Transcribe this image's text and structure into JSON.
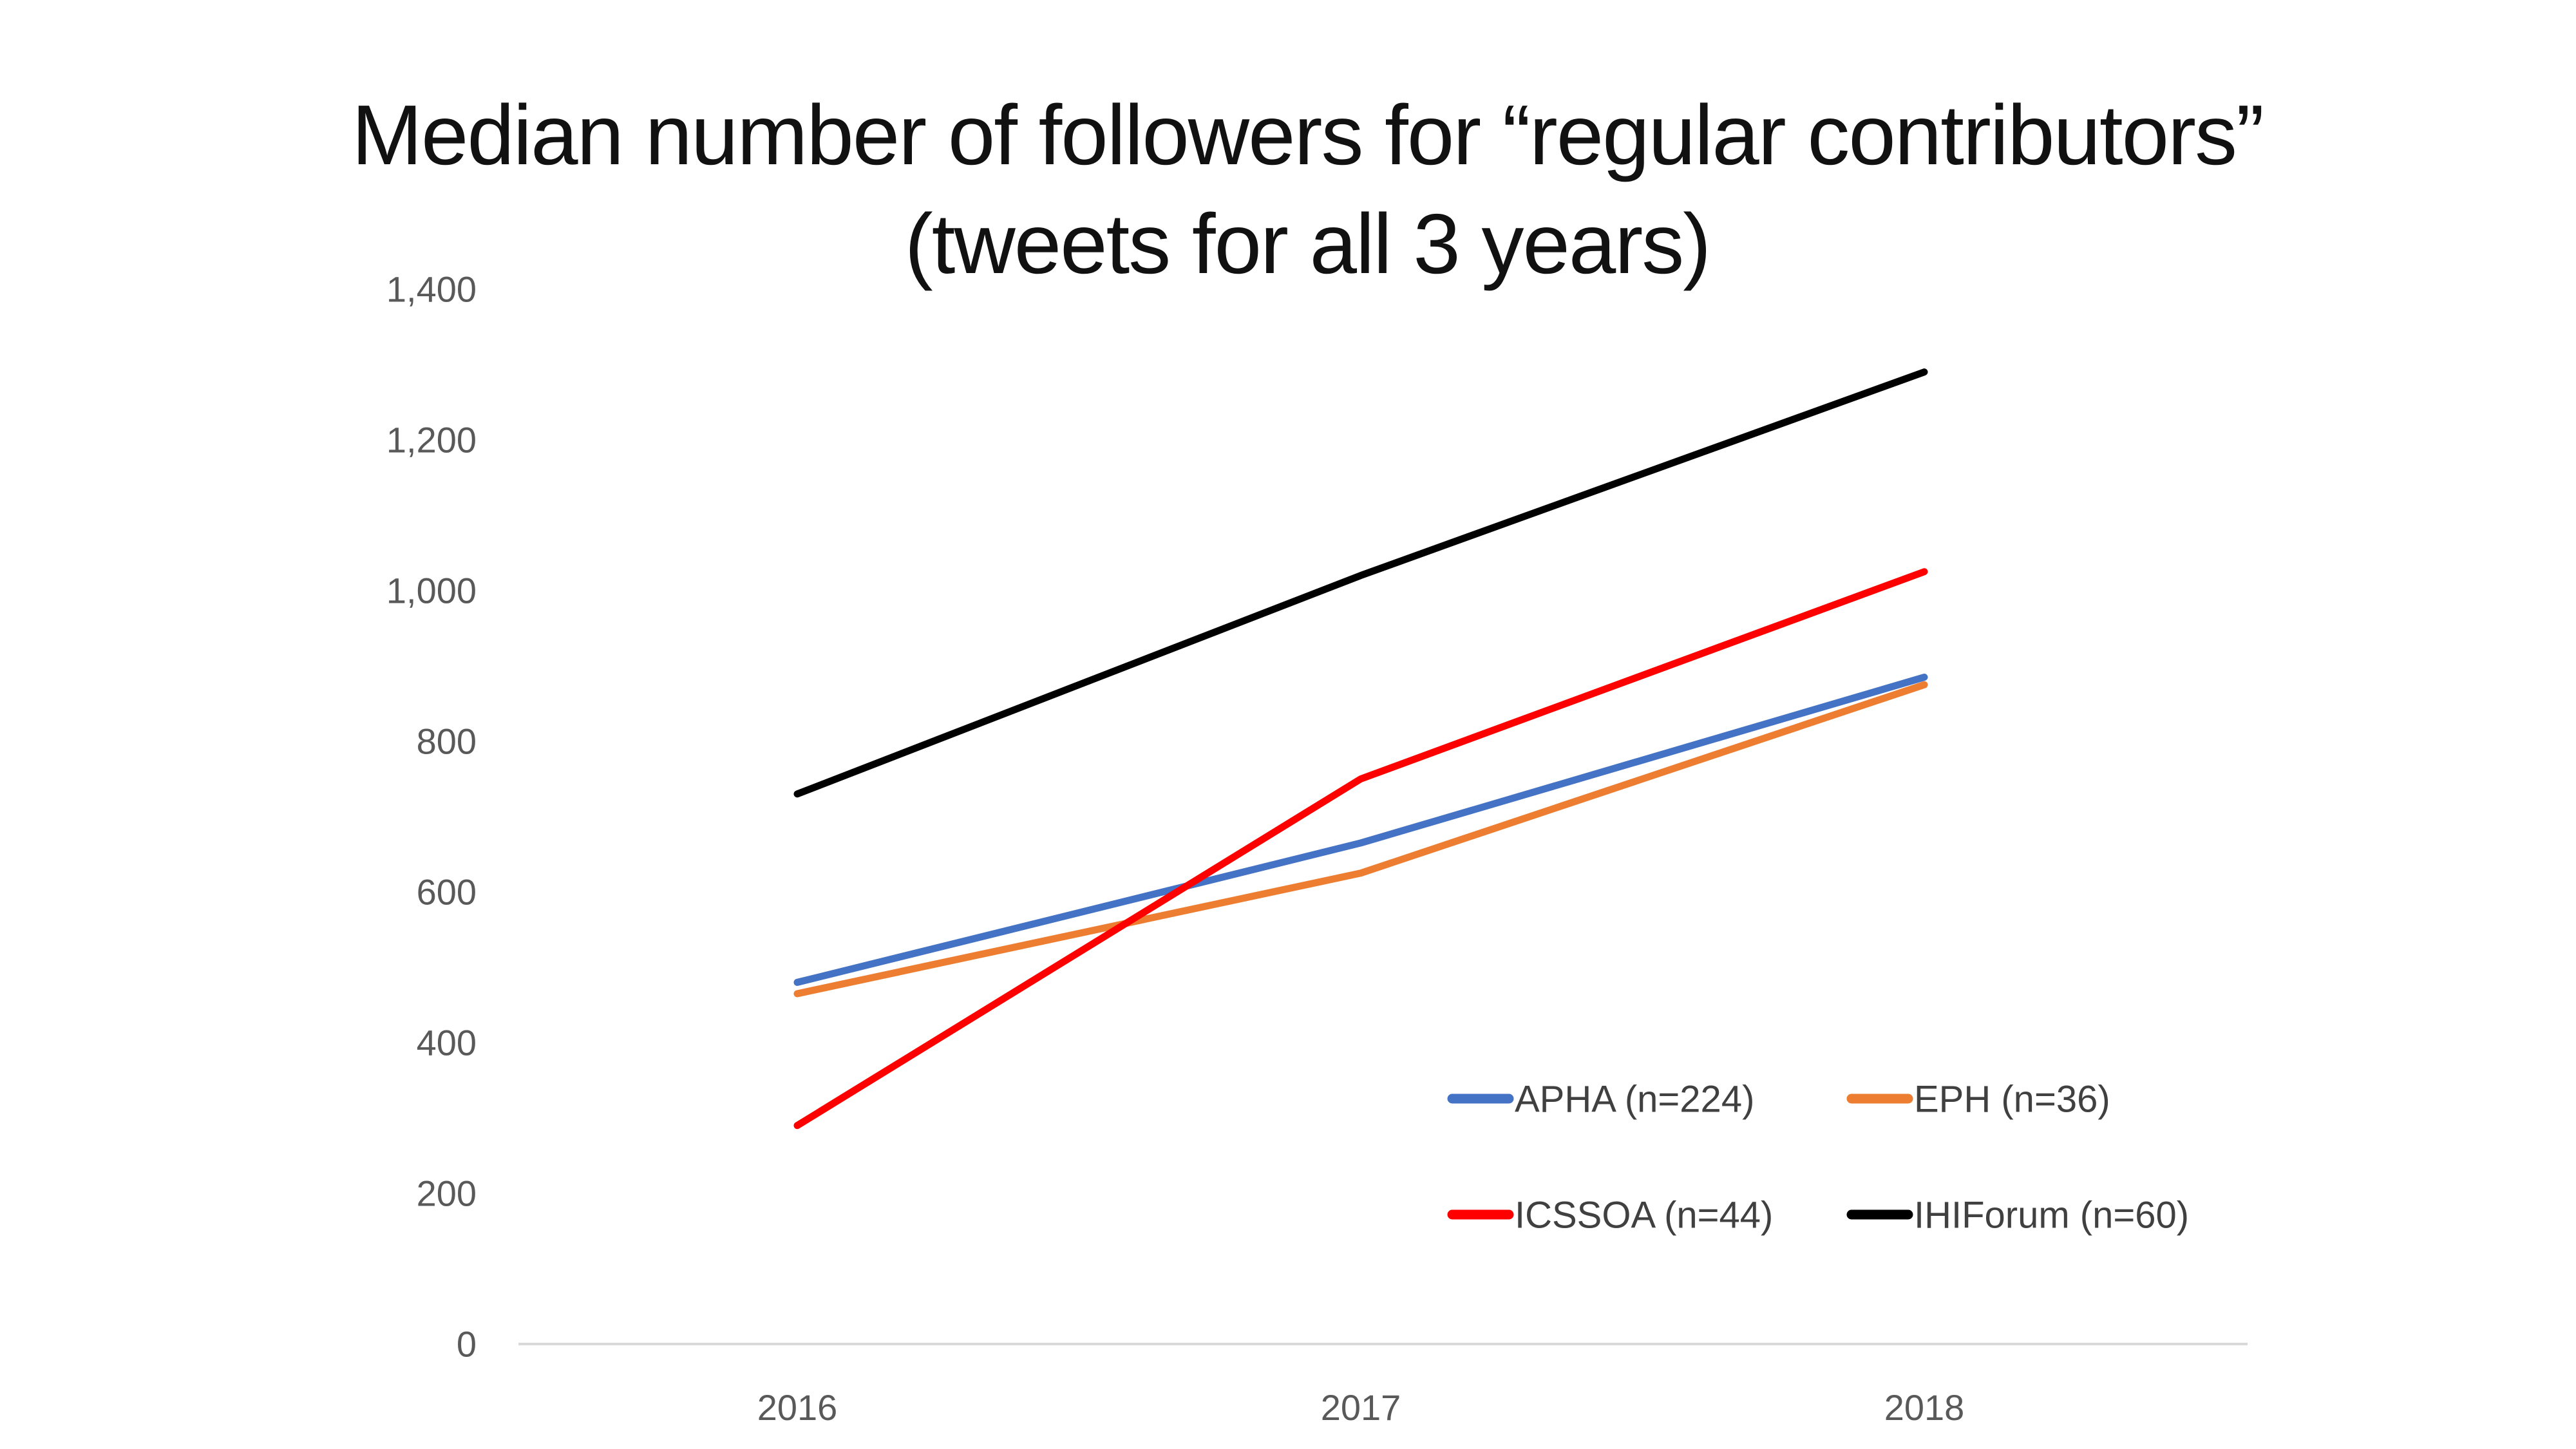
{
  "chart_data": {
    "type": "line",
    "title_line1": "Median number of followers for “regular contributors”",
    "title_line2": "(tweets for all 3 years)",
    "x_categories": [
      "2016",
      "2017",
      "2018"
    ],
    "series": [
      {
        "name": "APHA (n=224)",
        "color": "#4472C4",
        "values": [
          480,
          665,
          885
        ]
      },
      {
        "name": "EPH (n=36)",
        "color": "#ED7D31",
        "values": [
          465,
          625,
          875
        ]
      },
      {
        "name": "ICSSOA (n=44)",
        "color": "#FF0000",
        "values": [
          290,
          750,
          1025
        ]
      },
      {
        "name": "IHIForum (n=60)",
        "color": "#000000",
        "values": [
          730,
          1020,
          1290
        ]
      }
    ],
    "ylim": [
      0,
      1400
    ],
    "ytick_step": 200,
    "ytick_labels": [
      "0",
      "200",
      "400",
      "600",
      "800",
      "1,000",
      "1,200",
      "1,400"
    ],
    "grid": false,
    "legend_position": "inside-lower-right",
    "legend_rows": [
      [
        "APHA (n=224)",
        "EPH (n=36)"
      ],
      [
        "ICSSOA (n=44)",
        "IHIForum (n=60)"
      ]
    ]
  },
  "colors": {
    "title_text": "#111111",
    "axis_line": "#D9D9D9",
    "tick_text": "#595959",
    "legend_text": "#404040"
  }
}
